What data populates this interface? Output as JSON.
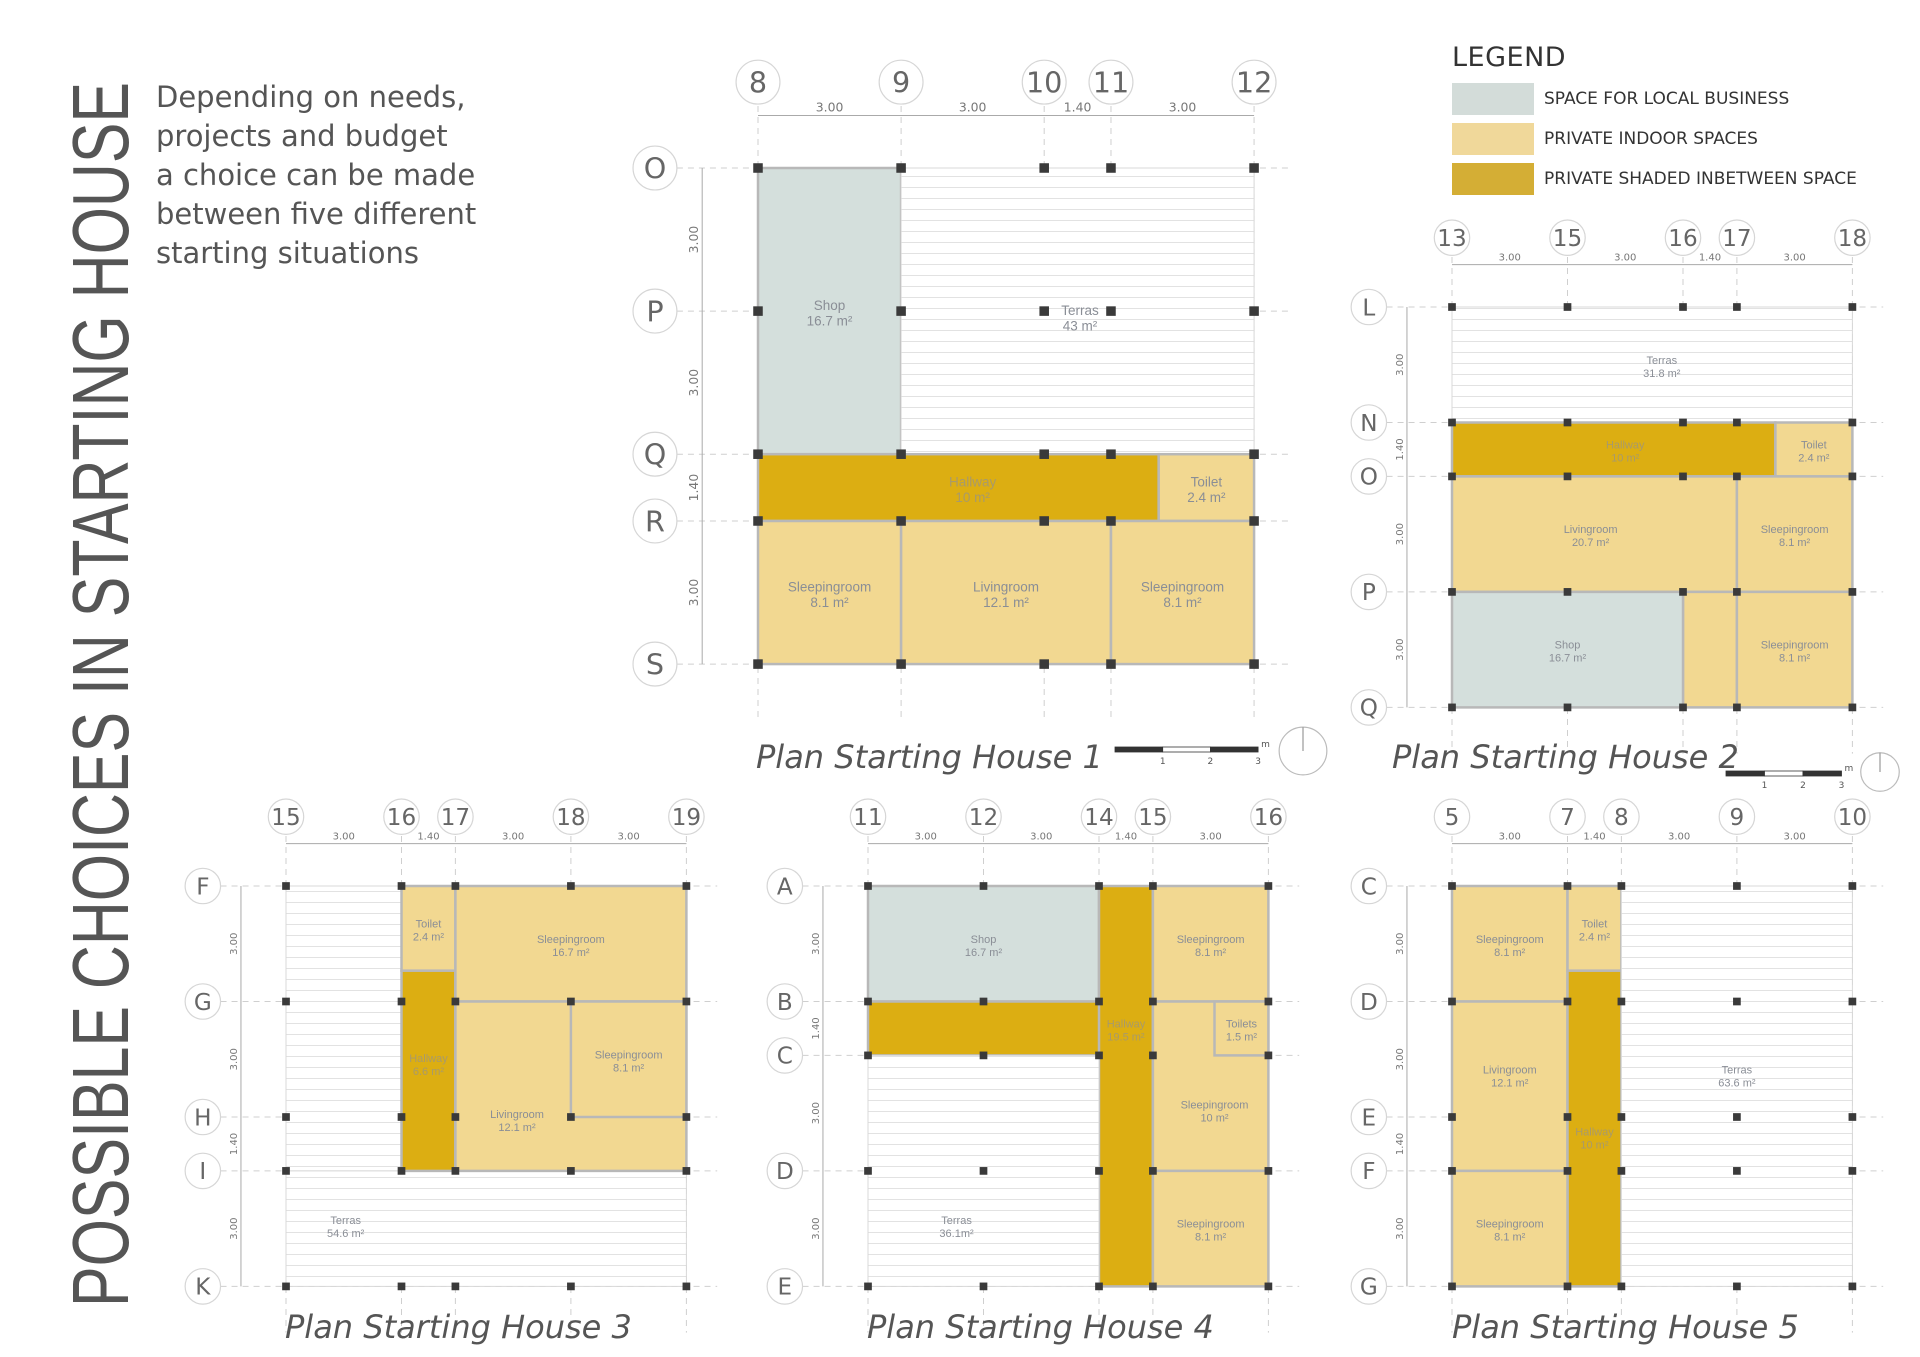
{
  "title": "POSSIBLE CHOICES IN STARTING HOUSE",
  "intro_lines": [
    "Depending on needs,",
    "projects and budget",
    "a choice can be made",
    "between five different",
    "starting situations"
  ],
  "legend": {
    "title": "LEGEND",
    "items": [
      {
        "label": "SPACE FOR LOCAL BUSINESS",
        "color": "#d3dcd9"
      },
      {
        "label": "PRIVATE INDOOR SPACES",
        "color": "#f0d89a"
      },
      {
        "label": "PRIVATE SHADED INBETWEEN SPACE",
        "color": "#d4ae35"
      }
    ]
  },
  "colors": {
    "business": "#d4dfdc",
    "indoor": "#f2d891",
    "shaded": "#dcae12",
    "terrace": "#ffffff",
    "text": "#8a8e96",
    "grid": "#bbbbbb",
    "column": "#3a3a3a"
  },
  "scale_bar": {
    "labels": [
      "1",
      "2",
      "3"
    ],
    "unit": "m"
  },
  "plans": [
    {
      "title": "Plan Starting House 1",
      "columns": [
        "8",
        "9",
        "10",
        "11",
        "12"
      ],
      "col_dims": [
        "3.00",
        "3.00",
        "1.40",
        "3.00"
      ],
      "rows": [
        "O",
        "P",
        "Q",
        "R",
        "S"
      ],
      "row_dims": [
        "3.00",
        "3.00",
        "1.40",
        "3.00"
      ],
      "rooms": [
        {
          "name": "Shop",
          "area": "16.7 m²",
          "type": "business"
        },
        {
          "name": "Terras",
          "area": "43 m²",
          "type": "terrace"
        },
        {
          "name": "Hallway",
          "area": "10 m²",
          "type": "shaded"
        },
        {
          "name": "Toilet",
          "area": "2.4 m²",
          "type": "indoor"
        },
        {
          "name": "Sleepingroom",
          "area": "8.1 m²",
          "type": "indoor"
        },
        {
          "name": "Livingroom",
          "area": "12.1 m²",
          "type": "indoor"
        },
        {
          "name": "Sleepingroom",
          "area": "8.1 m²",
          "type": "indoor"
        }
      ]
    },
    {
      "title": "Plan Starting House 2",
      "columns": [
        "13",
        "15",
        "16",
        "17",
        "18"
      ],
      "col_dims": [
        "3.00",
        "3.00",
        "1.40",
        "3.00"
      ],
      "rows": [
        "L",
        "N",
        "O",
        "P",
        "Q"
      ],
      "row_dims": [
        "3.00",
        "1.40",
        "3.00",
        "3.00"
      ],
      "rooms": [
        {
          "name": "Terras",
          "area": "31.8 m²",
          "type": "terrace"
        },
        {
          "name": "Hallway",
          "area": "10 m²",
          "type": "shaded"
        },
        {
          "name": "Toilet",
          "area": "2.4 m²",
          "type": "indoor"
        },
        {
          "name": "Livingroom",
          "area": "20.7 m²",
          "type": "indoor"
        },
        {
          "name": "Shop",
          "area": "16.7 m²",
          "type": "business"
        },
        {
          "name": "Sleepingroom",
          "area": "8.1 m²",
          "type": "indoor"
        },
        {
          "name": "Sleepingroom",
          "area": "8.1 m²",
          "type": "indoor"
        }
      ]
    },
    {
      "title": "Plan Starting House 3",
      "columns": [
        "15",
        "16",
        "17",
        "18",
        "19"
      ],
      "col_dims": [
        "3.00",
        "1.40",
        "3.00",
        "3.00"
      ],
      "rows": [
        "F",
        "G",
        "H",
        "I",
        "K"
      ],
      "row_dims": [
        "3.00",
        "3.00",
        "1.40",
        "3.00"
      ],
      "rooms": [
        {
          "name": "Terras",
          "area": "54.6 m²",
          "type": "terrace"
        },
        {
          "name": "Toilet",
          "area": "2.4 m²",
          "type": "indoor"
        },
        {
          "name": "Hallway",
          "area": "6.6 m²",
          "type": "shaded"
        },
        {
          "name": "Sleepingroom",
          "area": "16.7 m²",
          "type": "indoor"
        },
        {
          "name": "Livingroom",
          "area": "12.1 m²",
          "type": "indoor"
        },
        {
          "name": "Sleepingroom",
          "area": "8.1 m²",
          "type": "indoor"
        }
      ]
    },
    {
      "title": "Plan Starting House 4",
      "columns": [
        "11",
        "12",
        "14",
        "15",
        "16"
      ],
      "col_dims": [
        "3.00",
        "3.00",
        "1.40",
        "3.00"
      ],
      "rows": [
        "A",
        "B",
        "C",
        "D",
        "E"
      ],
      "row_dims": [
        "3.00",
        "1.40",
        "3.00",
        "3.00"
      ],
      "rooms": [
        {
          "name": "Shop",
          "area": "16.7 m²",
          "type": "business"
        },
        {
          "name": "Hallway",
          "area": "19.5 m²",
          "type": "shaded"
        },
        {
          "name": "Terras",
          "area": "36.1m²",
          "type": "terrace"
        },
        {
          "name": "Sleepingroom",
          "area": "8.1 m²",
          "type": "indoor"
        },
        {
          "name": "Sleepingroom",
          "area": "10 m²",
          "type": "indoor"
        },
        {
          "name": "Toilets",
          "area": "1.5 m²",
          "type": "indoor"
        },
        {
          "name": "Sleepingroom",
          "area": "8.1 m²",
          "type": "indoor"
        }
      ]
    },
    {
      "title": "Plan Starting House 5",
      "columns": [
        "5",
        "7",
        "8",
        "9",
        "10"
      ],
      "col_dims": [
        "3.00",
        "1.40",
        "3.00",
        "3.00"
      ],
      "rows": [
        "C",
        "D",
        "E",
        "F",
        "G"
      ],
      "row_dims": [
        "3.00",
        "3.00",
        "1.40",
        "3.00"
      ],
      "rooms": [
        {
          "name": "Sleepingroom",
          "area": "8.1 m²",
          "type": "indoor"
        },
        {
          "name": "Toilet",
          "area": "2.4 m²",
          "type": "indoor"
        },
        {
          "name": "Livingroom",
          "area": "12.1 m²",
          "type": "indoor"
        },
        {
          "name": "Hallway",
          "area": "10 m²",
          "type": "shaded"
        },
        {
          "name": "Sleepingroom",
          "area": "8.1 m²",
          "type": "indoor"
        },
        {
          "name": "Terras",
          "area": "63.6 m²",
          "type": "terrace"
        }
      ]
    }
  ]
}
